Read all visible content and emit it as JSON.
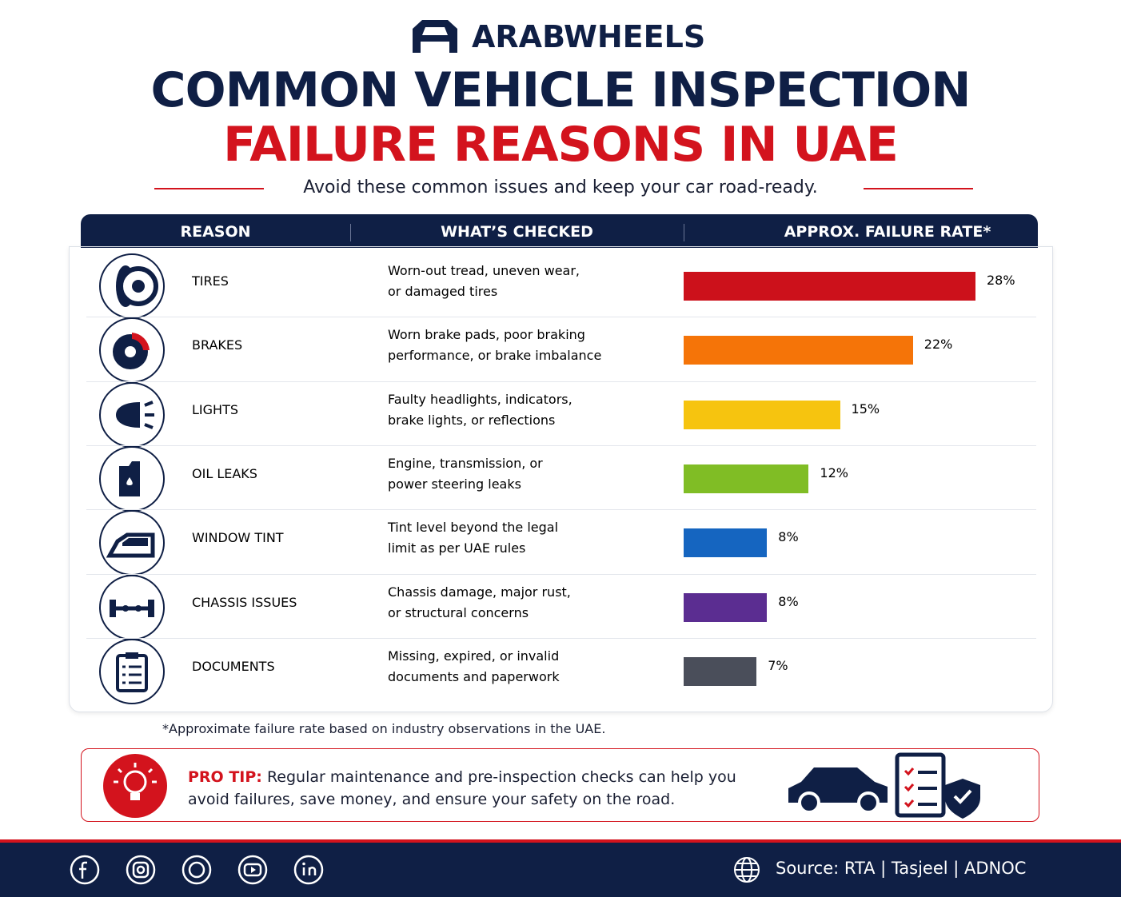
{
  "brand": "ARABWHEELS",
  "title_line1": "COMMON VEHICLE INSPECTION",
  "title_line2": "FAILURE REASONS IN UAE",
  "subtitle": "Avoid these common issues and keep your car road-ready.",
  "chart_data": {
    "type": "bar",
    "columns": [
      "REASON",
      "WHAT’S CHECKED",
      "APPROX. FAILURE RATE*"
    ],
    "categories": [
      "TIRES",
      "BRAKES",
      "LIGHTS",
      "OIL LEAKS",
      "WINDOW TINT",
      "CHASSIS ISSUES",
      "DOCUMENTS"
    ],
    "descriptions": [
      [
        "Worn-out tread, uneven wear,",
        "or damaged tires"
      ],
      [
        "Worn brake pads, poor braking",
        "performance, or brake imbalance"
      ],
      [
        "Faulty headlights, indicators,",
        "brake lights, or reflections"
      ],
      [
        "Engine, transmission, or",
        "power steering leaks"
      ],
      [
        "Tint level beyond the legal",
        "limit as per UAE rules"
      ],
      [
        "Chassis damage, major rust,",
        "or structural concerns"
      ],
      [
        "Missing, expired, or invalid",
        "documents and paperwork"
      ]
    ],
    "values": [
      28,
      22,
      15,
      12,
      8,
      8,
      7
    ],
    "value_labels": [
      "28%",
      "22%",
      "15%",
      "12%",
      "8%",
      "8%",
      "7%"
    ],
    "colors": [
      "#cc111b",
      "#f57408",
      "#f6c40f",
      "#80bd25",
      "#1565c0",
      "#5b2d91",
      "#4a4e5a"
    ]
  },
  "footnote": "*Approximate failure rate based on industry observations in the UAE.",
  "pro_tip": {
    "label": "PRO TIP:",
    "lines": [
      "Regular maintenance and pre-inspection checks can help you",
      "avoid failures, save money, and ensure your safety on the road."
    ]
  },
  "source": "Source: RTA | Tasjeel | ADNOC"
}
